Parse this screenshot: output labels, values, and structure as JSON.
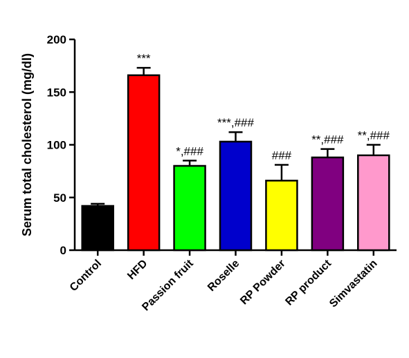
{
  "chart_data": {
    "type": "bar",
    "title": "",
    "xlabel": "",
    "ylabel": "Serum total cholesterol (mg/dl)",
    "ylim": [
      0,
      200
    ],
    "yticks": [
      "0",
      "50",
      "100",
      "150",
      "200"
    ],
    "categories": [
      "Control",
      "HFD",
      "Passion fruit",
      "Roselle",
      "RP Powder",
      "RP product",
      "Simvastatin"
    ],
    "values": [
      42,
      166,
      80,
      103,
      66,
      88,
      90
    ],
    "errors": [
      2,
      7,
      5,
      9,
      15,
      8,
      10
    ],
    "colors": [
      "#000000",
      "#ff0000",
      "#00ff00",
      "#0000cc",
      "#ffff00",
      "#800080",
      "#ff99cc"
    ],
    "annotations": [
      "",
      "***",
      "*,###",
      "***,###",
      "###",
      "**,###",
      "**,###"
    ],
    "grid": false,
    "legend": "none"
  }
}
